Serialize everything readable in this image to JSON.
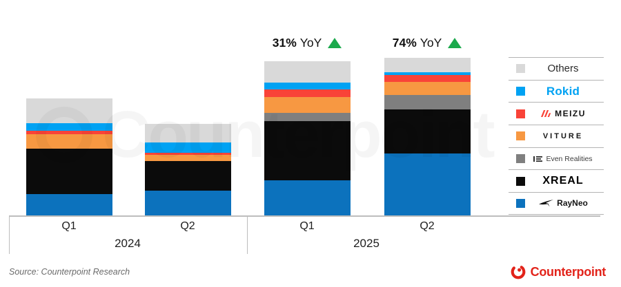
{
  "chart_data": {
    "type": "bar",
    "stacked": true,
    "title": "",
    "categories": [
      "Q1 2024",
      "Q2 2024",
      "Q1 2025",
      "Q2 2025"
    ],
    "unit": "relative shipment volume (no value axis shown; values estimated from bar pixel heights)",
    "series": [
      {
        "name": "RayNeo",
        "color": "#0C72BD",
        "values": [
          31,
          36,
          51,
          90
        ]
      },
      {
        "name": "XREAL",
        "color": "#0B0B0B",
        "values": [
          66,
          43.5,
          86,
          64
        ]
      },
      {
        "name": "Even Realities",
        "color": "#7F7F7F",
        "values": [
          0,
          0,
          12.5,
          21
        ]
      },
      {
        "name": "VITURE",
        "color": "#F79842",
        "values": [
          21,
          8.5,
          22.5,
          19.5
        ]
      },
      {
        "name": "MEIZU",
        "color": "#F94338",
        "values": [
          5.5,
          3,
          11.5,
          9.5
        ]
      },
      {
        "name": "Rokid",
        "color": "#00A2F3",
        "values": [
          11,
          15,
          9.5,
          4.5
        ]
      },
      {
        "name": "Others",
        "color": "#D9D9D9",
        "values": [
          35.5,
          27,
          31,
          20.5
        ]
      }
    ],
    "totals": [
      170,
      133,
      224,
      229
    ],
    "grid": false,
    "legend_position": "right",
    "annotations": [
      {
        "bar": "Q1 2025",
        "text": "31% YoY",
        "direction": "up"
      },
      {
        "bar": "Q2 2025",
        "text": "74% YoY",
        "direction": "up"
      }
    ]
  },
  "axis": {
    "quarters": [
      "Q1",
      "Q2",
      "Q1",
      "Q2"
    ],
    "years": [
      "2024",
      "2025"
    ]
  },
  "annotations": [
    {
      "pct": "31%",
      "label": "YoY",
      "bar_index": 2
    },
    {
      "pct": "74%",
      "label": "YoY",
      "bar_index": 3
    }
  ],
  "legend": {
    "items": [
      {
        "label": "Others",
        "swatch": "#D9D9D9",
        "style": "others"
      },
      {
        "label": "Rokid",
        "swatch": "#00A2F3",
        "style": "rokid"
      },
      {
        "label": "MEIZU",
        "swatch": "#F94338",
        "style": "meizu",
        "icon": "meizu-logo-icon"
      },
      {
        "label": "VITURE",
        "swatch": "#F79842",
        "style": "viture"
      },
      {
        "label": "Even Realities",
        "swatch": "#7F7F7F",
        "style": "even-realities",
        "icon": "even-realities-logo-icon"
      },
      {
        "label": "XREAL",
        "swatch": "#0B0B0B",
        "style": "xreal"
      },
      {
        "label": "RayNeo",
        "swatch": "#0C72BD",
        "style": "rayneo",
        "icon": "rayneo-logo-icon"
      }
    ]
  },
  "watermark": {
    "text": "Counterpoint"
  },
  "footer": {
    "source": "Source: Counterpoint Research",
    "brand": "Counterpoint"
  },
  "colors": {
    "up_green": "#1BA94C",
    "counterpoint_red": "#E2231A",
    "axis_line": "#BDBDBD",
    "meizu_red": "#F94338"
  }
}
